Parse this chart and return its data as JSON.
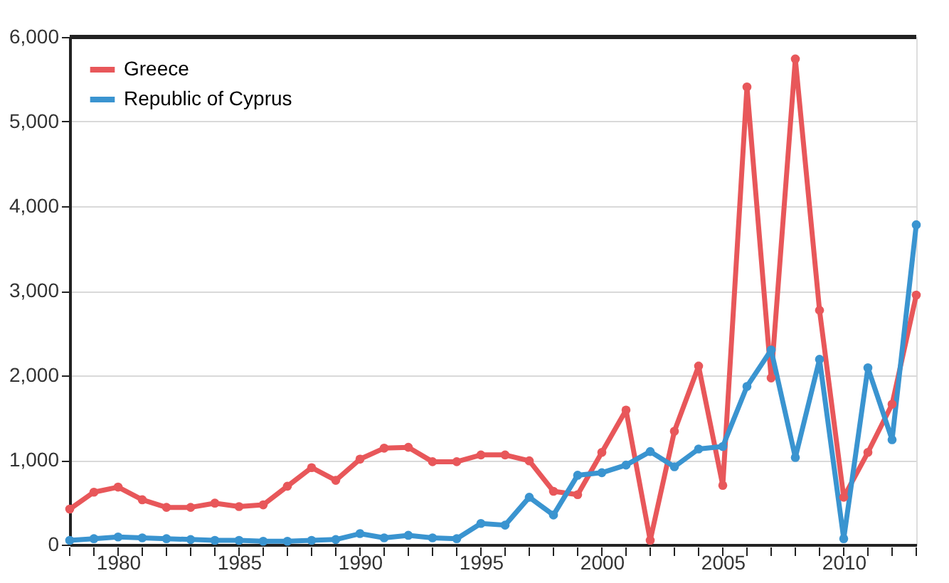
{
  "chart_data": {
    "type": "line",
    "x": [
      1978,
      1979,
      1980,
      1981,
      1982,
      1983,
      1984,
      1985,
      1986,
      1987,
      1988,
      1989,
      1990,
      1991,
      1992,
      1993,
      1994,
      1995,
      1996,
      1997,
      1998,
      1999,
      2000,
      2001,
      2002,
      2003,
      2004,
      2005,
      2006,
      2007,
      2008,
      2009,
      2010,
      2011,
      2012,
      2013
    ],
    "series": [
      {
        "name": "Greece",
        "color": "#e8575a",
        "values": [
          420,
          620,
          680,
          530,
          440,
          440,
          490,
          450,
          470,
          690,
          910,
          760,
          1010,
          1140,
          1150,
          980,
          980,
          1060,
          1060,
          990,
          630,
          590,
          1090,
          1590,
          50,
          1340,
          2110,
          700,
          5410,
          1970,
          5740,
          2770,
          560,
          1090,
          1660,
          2950
        ]
      },
      {
        "name": "Republic of Cyprus",
        "color": "#3a94d0",
        "values": [
          50,
          70,
          90,
          80,
          70,
          60,
          50,
          50,
          40,
          40,
          50,
          60,
          130,
          80,
          110,
          80,
          70,
          250,
          230,
          560,
          350,
          820,
          850,
          940,
          1100,
          920,
          1130,
          1160,
          1870,
          2300,
          1030,
          2190,
          70,
          2090,
          1240,
          3780
        ]
      }
    ],
    "xlim": [
      1978,
      2013
    ],
    "xticks": [
      {
        "value": 1978,
        "label": null
      },
      {
        "value": 1979,
        "label": null
      },
      1980,
      {
        "value": 1981,
        "label": null
      },
      {
        "value": 1982,
        "label": null
      },
      {
        "value": 1983,
        "label": null
      },
      {
        "value": 1984,
        "label": null
      },
      1985,
      {
        "value": 1986,
        "label": null
      },
      {
        "value": 1987,
        "label": null
      },
      {
        "value": 1988,
        "label": null
      },
      {
        "value": 1989,
        "label": null
      },
      1990,
      {
        "value": 1991,
        "label": null
      },
      {
        "value": 1992,
        "label": null
      },
      {
        "value": 1993,
        "label": null
      },
      {
        "value": 1994,
        "label": null
      },
      1995,
      {
        "value": 1996,
        "label": null
      },
      {
        "value": 1997,
        "label": null
      },
      {
        "value": 1998,
        "label": null
      },
      {
        "value": 1999,
        "label": null
      },
      2000,
      {
        "value": 2001,
        "label": null
      },
      {
        "value": 2002,
        "label": null
      },
      {
        "value": 2003,
        "label": null
      },
      {
        "value": 2004,
        "label": null
      },
      2005,
      {
        "value": 2006,
        "label": null
      },
      {
        "value": 2007,
        "label": null
      },
      {
        "value": 2008,
        "label": null
      },
      {
        "value": 2009,
        "label": null
      },
      2010,
      {
        "value": 2011,
        "label": null
      },
      {
        "value": 2012,
        "label": null
      },
      {
        "value": 2013,
        "label": null
      }
    ],
    "ylim": [
      0,
      6000
    ],
    "yticks": [
      {
        "value": 0,
        "label": "0"
      },
      {
        "value": 1000,
        "label": "1,000"
      },
      {
        "value": 2000,
        "label": "2,000"
      },
      {
        "value": 3000,
        "label": "3,000"
      },
      {
        "value": 4000,
        "label": "4,000"
      },
      {
        "value": 5000,
        "label": "5,000"
      },
      {
        "value": 6000,
        "label": "6,000"
      }
    ],
    "grid": "y",
    "legend": "top left",
    "marker": "circle",
    "line_style": "solid"
  }
}
